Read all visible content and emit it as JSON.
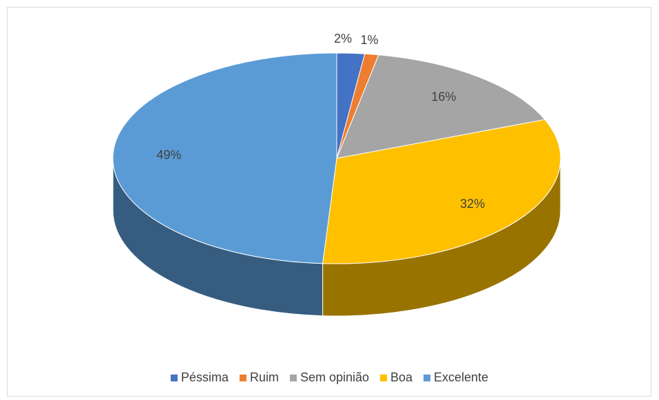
{
  "chart_data": {
    "type": "pie3d",
    "categories": [
      "Péssima",
      "Ruim",
      "Sem opinião",
      "Boa",
      "Excelente"
    ],
    "values": [
      2,
      1,
      16,
      32,
      49
    ],
    "value_labels": [
      "2%",
      "1%",
      "16%",
      "32%",
      "49%"
    ],
    "colors": [
      "#4472c4",
      "#ed7d31",
      "#a5a5a5",
      "#ffc000",
      "#5b9bd5"
    ],
    "legend": "bottom"
  }
}
